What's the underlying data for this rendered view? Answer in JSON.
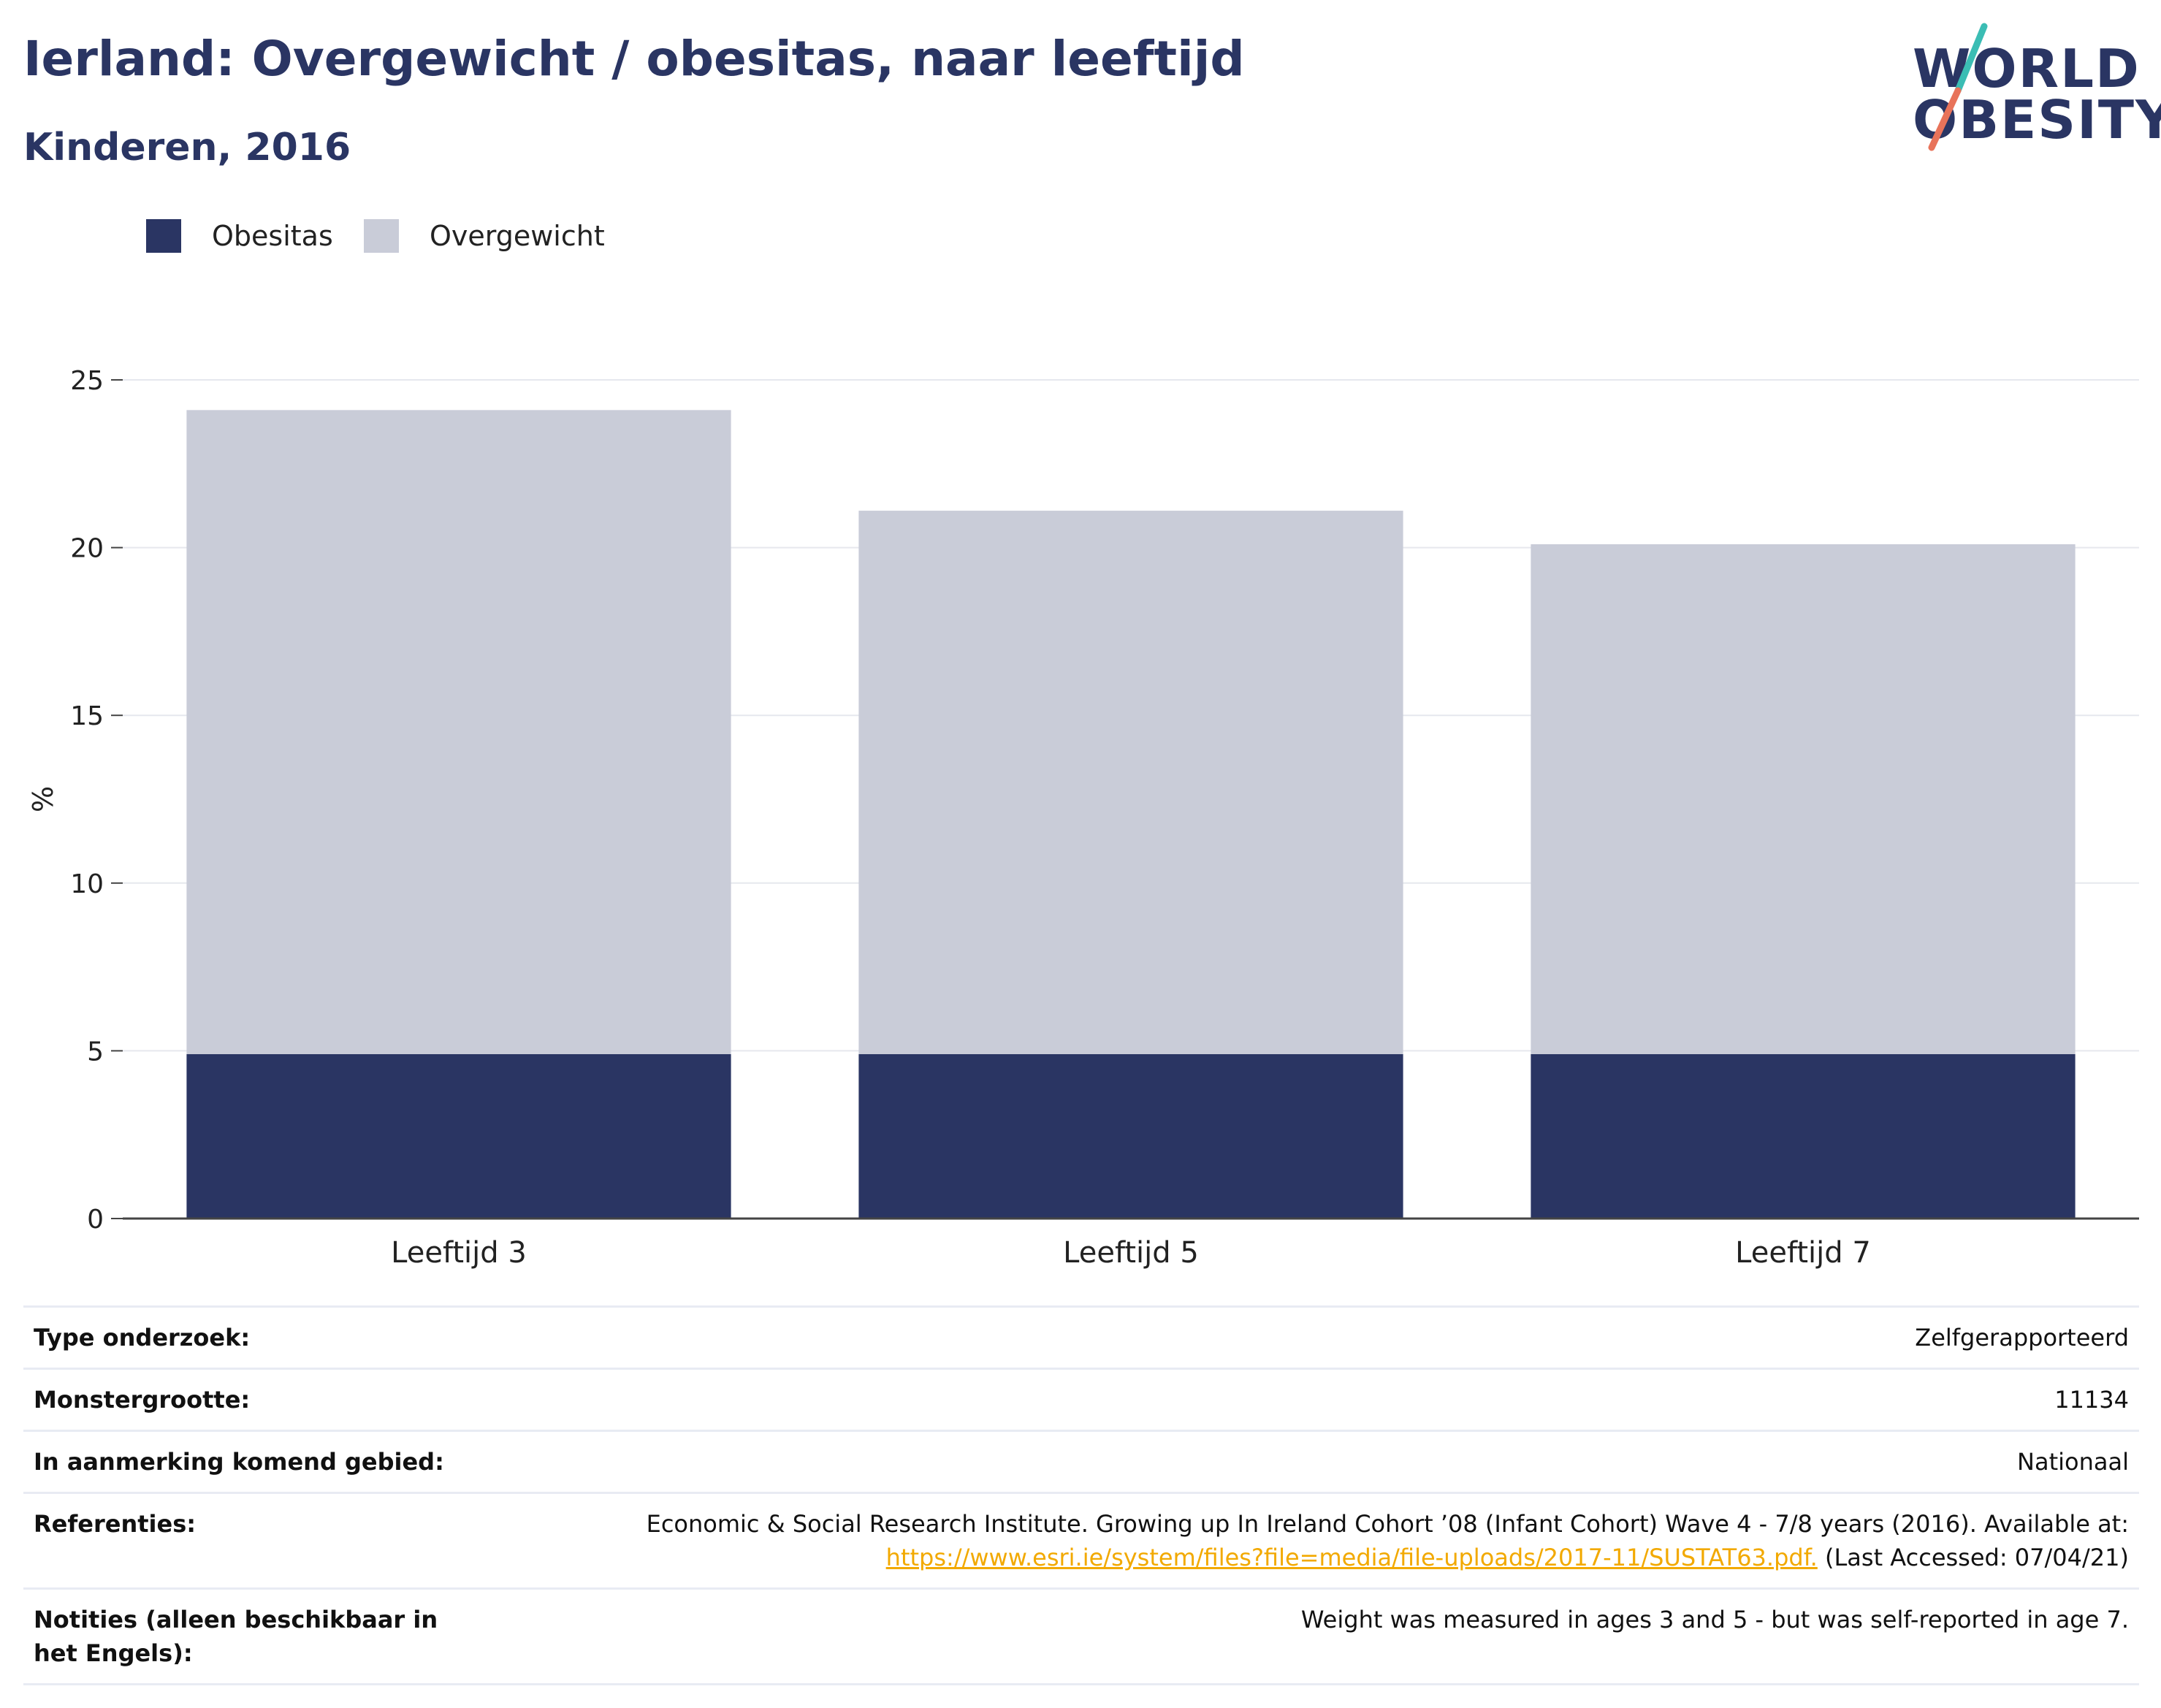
{
  "header": {
    "title": "Ierland: Overgewicht / obesitas, naar leeftijd",
    "subtitle": "Kinderen, 2016"
  },
  "logo": {
    "line1": "WORLD",
    "line2": "OBESITY",
    "colors": {
      "text": "#2a3563",
      "slash_top": "#3bbdb4",
      "slash_bottom": "#e8735a"
    }
  },
  "legend": {
    "items": [
      {
        "label": "Obesitas",
        "color": "#2a3563"
      },
      {
        "label": "Overgewicht",
        "color": "#c9ccd8"
      }
    ]
  },
  "chart_data": {
    "type": "bar",
    "stacked": true,
    "categories": [
      "Leeftijd 3",
      "Leeftijd 5",
      "Leeftijd 7"
    ],
    "series": [
      {
        "name": "Obesitas",
        "values": [
          4.9,
          4.9,
          4.9
        ],
        "color": "#2a3563"
      },
      {
        "name": "Overgewicht",
        "values": [
          19.2,
          16.2,
          15.2
        ],
        "color": "#c9ccd8"
      }
    ],
    "ylabel": "%",
    "ylim": [
      0,
      25
    ],
    "yticks": [
      0,
      5,
      10,
      15,
      20,
      25
    ],
    "grid": true
  },
  "meta": {
    "survey_type_label": "Type onderzoek:",
    "survey_type_value": "Zelfgerapporteerd",
    "sample_size_label": "Monstergrootte:",
    "sample_size_value": "11134",
    "area_label": "In aanmerking komend gebied:",
    "area_value": "Nationaal",
    "references_label": "Referenties:",
    "references_text": "Economic & Social Research Institute. Growing up In Ireland Cohort ’08 (Infant Cohort) Wave 4 - 7/8 years (2016). Available at:",
    "references_link": "https://www.esri.ie/system/files?file=media/file-uploads/2017-11/SUSTAT63.pdf.",
    "references_accessed": " (Last Accessed: 07/04/21)",
    "notes_label": "Notities (alleen beschikbaar in het Engels):",
    "notes_value": "Weight was measured in ages 3 and 5 - but was self-reported in age 7."
  }
}
